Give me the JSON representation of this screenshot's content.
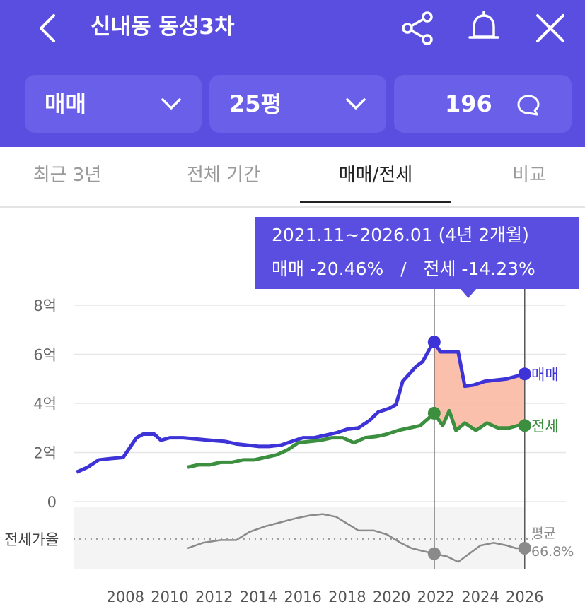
{
  "header": {
    "title": "신내동 동성3차",
    "deal_type": "매매",
    "size": "25평",
    "comment_count": "196",
    "icons": [
      "back-icon",
      "share-icon",
      "bell-icon",
      "close-icon"
    ],
    "background": "#5a4ee0"
  },
  "tabs": [
    {
      "label": "최근 3년",
      "active": false
    },
    {
      "label": "전체 기간",
      "active": false
    },
    {
      "label": "매매/전세",
      "active": true
    },
    {
      "label": "비교",
      "active": false
    }
  ],
  "tooltip": {
    "period": "2021.11~2026.01 (4년 2개월)",
    "sale_label": "매매",
    "sale_change": "-20.46%",
    "separator": "/",
    "jeonse_label": "전세",
    "jeonse_change": "-14.23%"
  },
  "chart_data": {
    "type": "line",
    "x_ticks": [
      "2008",
      "2010",
      "2012",
      "2014",
      "2016",
      "2018",
      "2020",
      "2022",
      "2024",
      "2026"
    ],
    "y_ticks": [
      "8억",
      "6억",
      "4억",
      "2억",
      "0"
    ],
    "ylim": [
      0,
      8
    ],
    "xlim": [
      2005.6,
      2026.9
    ],
    "grid": true,
    "colors": {
      "sale": "#3d33d6",
      "jeonse": "#3b8f3f",
      "ratio": "#8a8a8a",
      "highlight": "#f9b9a2"
    },
    "highlight_range": [
      2021.92,
      2026.0
    ],
    "series": [
      {
        "name": "매매",
        "unit": "억",
        "points": [
          [
            2005.8,
            1.2
          ],
          [
            2006.3,
            1.4
          ],
          [
            2006.8,
            1.7
          ],
          [
            2007.3,
            1.75
          ],
          [
            2007.9,
            1.8
          ],
          [
            2008.2,
            2.2
          ],
          [
            2008.5,
            2.6
          ],
          [
            2008.8,
            2.75
          ],
          [
            2009.3,
            2.75
          ],
          [
            2009.6,
            2.5
          ],
          [
            2010.0,
            2.6
          ],
          [
            2010.6,
            2.6
          ],
          [
            2011.2,
            2.55
          ],
          [
            2011.8,
            2.5
          ],
          [
            2012.5,
            2.45
          ],
          [
            2013.0,
            2.35
          ],
          [
            2013.5,
            2.3
          ],
          [
            2014.0,
            2.25
          ],
          [
            2014.5,
            2.25
          ],
          [
            2015.0,
            2.3
          ],
          [
            2015.5,
            2.45
          ],
          [
            2016.0,
            2.6
          ],
          [
            2016.5,
            2.6
          ],
          [
            2017.0,
            2.7
          ],
          [
            2017.5,
            2.8
          ],
          [
            2018.0,
            2.95
          ],
          [
            2018.5,
            3.0
          ],
          [
            2019.0,
            3.3
          ],
          [
            2019.4,
            3.65
          ],
          [
            2019.9,
            3.8
          ],
          [
            2020.2,
            3.95
          ],
          [
            2020.5,
            4.9
          ],
          [
            2020.8,
            5.2
          ],
          [
            2021.1,
            5.5
          ],
          [
            2021.4,
            5.7
          ],
          [
            2021.7,
            6.2
          ],
          [
            2021.92,
            6.5
          ],
          [
            2022.2,
            6.1
          ],
          [
            2022.6,
            6.1
          ],
          [
            2023.0,
            6.1
          ],
          [
            2023.3,
            4.7
          ],
          [
            2023.7,
            4.75
          ],
          [
            2024.2,
            4.9
          ],
          [
            2024.7,
            4.95
          ],
          [
            2025.2,
            5.0
          ],
          [
            2025.6,
            5.1
          ],
          [
            2026.0,
            5.2
          ]
        ],
        "end_label": "매매"
      },
      {
        "name": "전세",
        "unit": "억",
        "points": [
          [
            2010.8,
            1.4
          ],
          [
            2011.3,
            1.5
          ],
          [
            2011.8,
            1.5
          ],
          [
            2012.3,
            1.6
          ],
          [
            2012.8,
            1.6
          ],
          [
            2013.3,
            1.7
          ],
          [
            2013.8,
            1.7
          ],
          [
            2014.3,
            1.8
          ],
          [
            2014.8,
            1.9
          ],
          [
            2015.3,
            2.1
          ],
          [
            2015.8,
            2.4
          ],
          [
            2016.3,
            2.45
          ],
          [
            2016.8,
            2.5
          ],
          [
            2017.3,
            2.6
          ],
          [
            2017.8,
            2.6
          ],
          [
            2018.3,
            2.4
          ],
          [
            2018.8,
            2.6
          ],
          [
            2019.3,
            2.65
          ],
          [
            2019.8,
            2.75
          ],
          [
            2020.3,
            2.9
          ],
          [
            2020.8,
            3.0
          ],
          [
            2021.3,
            3.1
          ],
          [
            2021.92,
            3.6
          ],
          [
            2022.3,
            3.1
          ],
          [
            2022.6,
            3.7
          ],
          [
            2022.9,
            2.9
          ],
          [
            2023.3,
            3.2
          ],
          [
            2023.8,
            2.9
          ],
          [
            2024.3,
            3.2
          ],
          [
            2024.8,
            3.0
          ],
          [
            2025.3,
            3.0
          ],
          [
            2025.7,
            3.1
          ],
          [
            2026.0,
            3.1
          ]
        ],
        "end_label": "전세"
      },
      {
        "name": "전세가율",
        "unit": "%",
        "ylim": [
          45,
          90
        ],
        "points": [
          [
            2010.8,
            60
          ],
          [
            2011.5,
            64
          ],
          [
            2012.3,
            66
          ],
          [
            2013.0,
            66
          ],
          [
            2013.6,
            72
          ],
          [
            2014.3,
            76
          ],
          [
            2015.0,
            79
          ],
          [
            2015.7,
            82
          ],
          [
            2016.3,
            84
          ],
          [
            2016.9,
            85
          ],
          [
            2017.5,
            83
          ],
          [
            2018.0,
            78
          ],
          [
            2018.5,
            73
          ],
          [
            2019.2,
            73
          ],
          [
            2019.8,
            70
          ],
          [
            2020.4,
            64
          ],
          [
            2020.9,
            60
          ],
          [
            2021.4,
            58
          ],
          [
            2021.92,
            56
          ],
          [
            2022.5,
            54
          ],
          [
            2023.0,
            50
          ],
          [
            2023.5,
            56
          ],
          [
            2024.0,
            62
          ],
          [
            2024.6,
            64
          ],
          [
            2025.2,
            62
          ],
          [
            2025.6,
            60
          ],
          [
            2026.0,
            60
          ]
        ],
        "row_label": "전세가율",
        "avg_label": "평균",
        "avg_value": "66.8%"
      }
    ]
  }
}
